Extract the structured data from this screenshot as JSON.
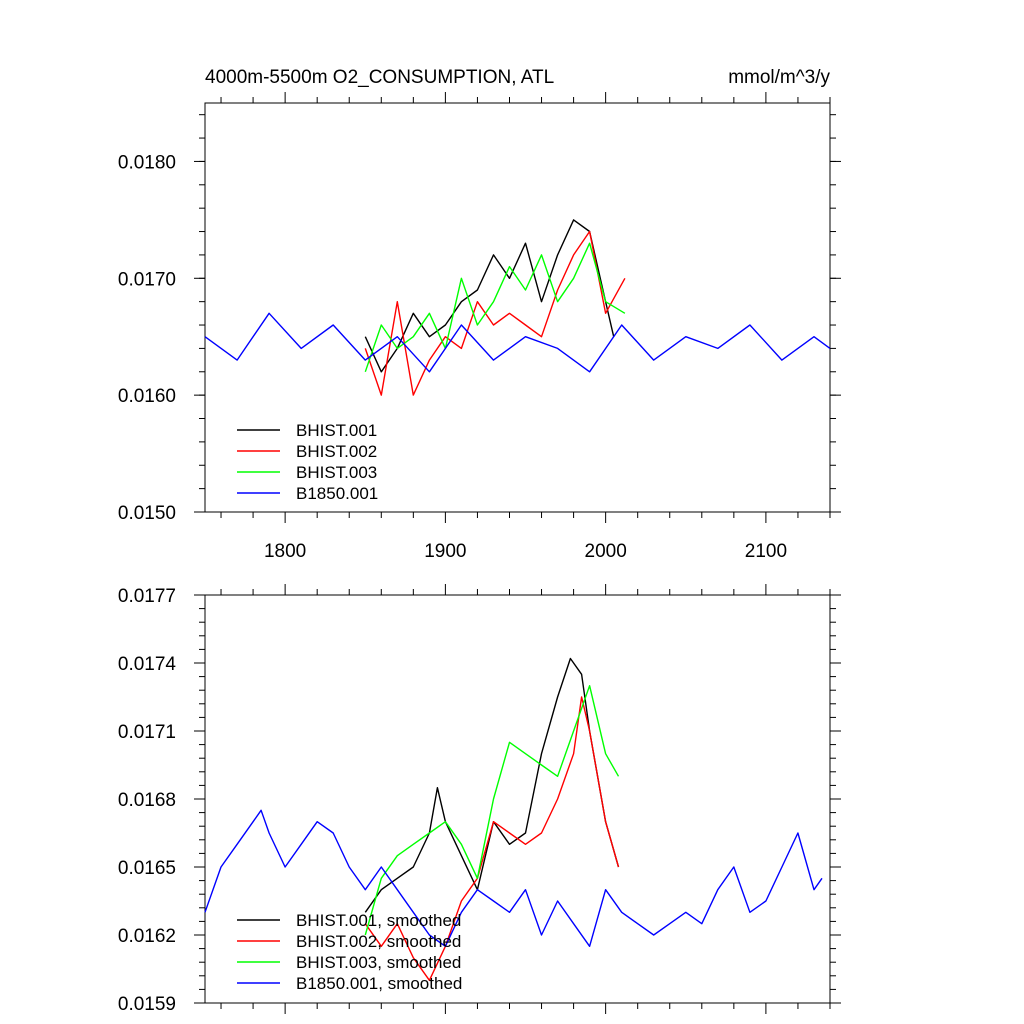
{
  "chart_data": [
    {
      "type": "line",
      "title": "4000m-5500m O2_CONSUMPTION, ATL",
      "units": "mmol/m^3/y",
      "xlim": [
        1750,
        2140
      ],
      "ylim": [
        0.015,
        0.0185
      ],
      "x_ticks": [
        1800,
        1900,
        2000,
        2100
      ],
      "x_tick_labels": [
        "1800",
        "1900",
        "2000",
        "2100"
      ],
      "y_ticks": [
        0.015,
        0.016,
        0.017,
        0.018
      ],
      "y_tick_labels": [
        "0.0150",
        "0.0160",
        "0.0170",
        "0.0180"
      ],
      "legend_position": "lower-left",
      "series": [
        {
          "name": "BHIST.001",
          "color": "#000000",
          "x": [
            1850,
            1860,
            1870,
            1880,
            1890,
            1900,
            1910,
            1920,
            1930,
            1940,
            1950,
            1960,
            1970,
            1980,
            1990,
            2000,
            2005
          ],
          "y": [
            0.0165,
            0.0162,
            0.0164,
            0.0167,
            0.0165,
            0.0166,
            0.0168,
            0.0169,
            0.0172,
            0.017,
            0.0173,
            0.0168,
            0.0172,
            0.0175,
            0.0174,
            0.0168,
            0.0165
          ]
        },
        {
          "name": "BHIST.002",
          "color": "#ff0000",
          "x": [
            1850,
            1860,
            1870,
            1880,
            1890,
            1900,
            1910,
            1920,
            1930,
            1940,
            1950,
            1960,
            1970,
            1980,
            1990,
            2000,
            2012
          ],
          "y": [
            0.0164,
            0.016,
            0.0168,
            0.016,
            0.0163,
            0.0165,
            0.0164,
            0.0168,
            0.0166,
            0.0167,
            0.0166,
            0.0165,
            0.0169,
            0.0172,
            0.0174,
            0.0167,
            0.017
          ]
        },
        {
          "name": "BHIST.003",
          "color": "#00ff00",
          "x": [
            1850,
            1860,
            1870,
            1880,
            1890,
            1900,
            1910,
            1920,
            1930,
            1940,
            1950,
            1960,
            1970,
            1980,
            1990,
            2000,
            2012
          ],
          "y": [
            0.0162,
            0.0166,
            0.0164,
            0.0165,
            0.0167,
            0.0164,
            0.017,
            0.0166,
            0.0168,
            0.0171,
            0.0169,
            0.0172,
            0.0168,
            0.017,
            0.0173,
            0.0168,
            0.0167
          ]
        },
        {
          "name": "B1850.001",
          "color": "#0000ff",
          "x": [
            1750,
            1770,
            1790,
            1810,
            1830,
            1850,
            1870,
            1890,
            1910,
            1930,
            1950,
            1970,
            1990,
            2010,
            2030,
            2050,
            2070,
            2090,
            2110,
            2130,
            2140
          ],
          "y": [
            0.0165,
            0.0163,
            0.0167,
            0.0164,
            0.0166,
            0.0163,
            0.0165,
            0.0162,
            0.0166,
            0.0163,
            0.0165,
            0.0164,
            0.0162,
            0.0166,
            0.0163,
            0.0165,
            0.0164,
            0.0166,
            0.0163,
            0.0165,
            0.0164
          ]
        }
      ]
    },
    {
      "type": "line",
      "xlim": [
        1750,
        2140
      ],
      "ylim": [
        0.0159,
        0.0177
      ],
      "x_ticks": [
        1800,
        1900,
        2000,
        2100
      ],
      "y_ticks": [
        0.0159,
        0.0162,
        0.0165,
        0.0168,
        0.0171,
        0.0174,
        0.0177
      ],
      "y_tick_labels": [
        "0.0159",
        "0.0162",
        "0.0165",
        "0.0168",
        "0.0171",
        "0.0174",
        "0.0177"
      ],
      "legend_position": "lower-left",
      "series": [
        {
          "name": "BHIST.001, smoothed",
          "color": "#000000",
          "x": [
            1850,
            1860,
            1870,
            1880,
            1890,
            1895,
            1900,
            1910,
            1920,
            1930,
            1940,
            1950,
            1960,
            1970,
            1978,
            1985,
            1990,
            2000,
            2008
          ],
          "y": [
            0.0163,
            0.0164,
            0.01645,
            0.0165,
            0.01665,
            0.01685,
            0.0167,
            0.01655,
            0.0164,
            0.0167,
            0.0166,
            0.01665,
            0.017,
            0.01725,
            0.01742,
            0.01735,
            0.0171,
            0.0167,
            0.0165
          ]
        },
        {
          "name": "BHIST.002, smoothed",
          "color": "#ff0000",
          "x": [
            1850,
            1860,
            1870,
            1880,
            1890,
            1900,
            1910,
            1920,
            1930,
            1940,
            1950,
            1960,
            1970,
            1980,
            1985,
            1990,
            2000,
            2008
          ],
          "y": [
            0.01625,
            0.01615,
            0.01625,
            0.0161,
            0.016,
            0.01615,
            0.01635,
            0.01645,
            0.0167,
            0.01665,
            0.0166,
            0.01665,
            0.0168,
            0.017,
            0.01725,
            0.0171,
            0.0167,
            0.0165
          ]
        },
        {
          "name": "BHIST.003, smoothed",
          "color": "#00ff00",
          "x": [
            1850,
            1860,
            1870,
            1880,
            1890,
            1900,
            1910,
            1920,
            1930,
            1940,
            1950,
            1960,
            1970,
            1980,
            1990,
            2000,
            2008
          ],
          "y": [
            0.0162,
            0.01645,
            0.01655,
            0.0166,
            0.01665,
            0.0167,
            0.0166,
            0.01645,
            0.0168,
            0.01705,
            0.017,
            0.01695,
            0.0169,
            0.0171,
            0.0173,
            0.017,
            0.0169
          ]
        },
        {
          "name": "B1850.001, smoothed",
          "color": "#0000ff",
          "x": [
            1750,
            1760,
            1770,
            1780,
            1785,
            1790,
            1800,
            1810,
            1820,
            1830,
            1840,
            1850,
            1860,
            1870,
            1880,
            1890,
            1900,
            1910,
            1920,
            1930,
            1940,
            1950,
            1960,
            1970,
            1980,
            1990,
            2000,
            2010,
            2020,
            2030,
            2040,
            2050,
            2060,
            2070,
            2080,
            2090,
            2100,
            2110,
            2120,
            2130,
            2135
          ],
          "y": [
            0.0163,
            0.0165,
            0.0166,
            0.0167,
            0.01675,
            0.01665,
            0.0165,
            0.0166,
            0.0167,
            0.01665,
            0.0165,
            0.0164,
            0.0165,
            0.0164,
            0.0163,
            0.0162,
            0.01615,
            0.0163,
            0.0164,
            0.01635,
            0.0163,
            0.0164,
            0.0162,
            0.01635,
            0.01625,
            0.01615,
            0.0164,
            0.0163,
            0.01625,
            0.0162,
            0.01625,
            0.0163,
            0.01625,
            0.0164,
            0.0165,
            0.0163,
            0.01635,
            0.0165,
            0.01665,
            0.0164,
            0.01645
          ]
        }
      ]
    }
  ]
}
